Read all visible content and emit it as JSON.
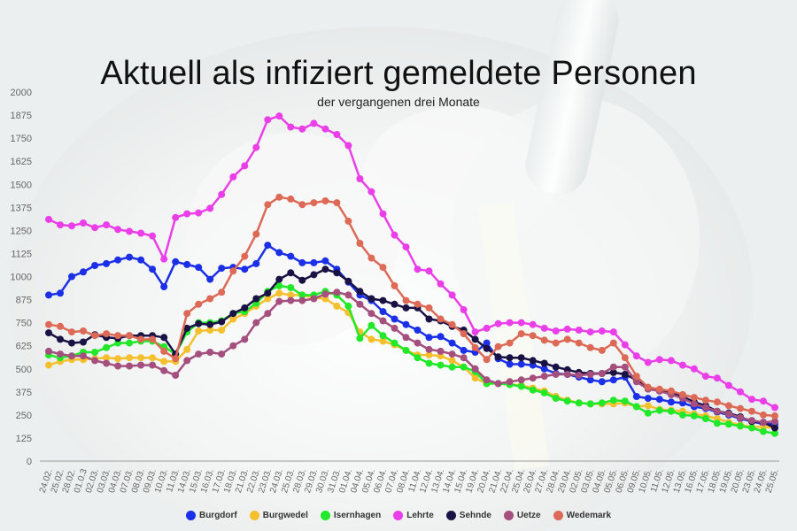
{
  "title": "Aktuell als infiziert gemeldete Personen",
  "subtitle": "der vergangenen drei Monate",
  "chart_data": {
    "type": "line",
    "title": "Aktuell als infiziert gemeldete Personen",
    "subtitle": "der vergangenen drei Monate",
    "xlabel": "",
    "ylabel": "",
    "ylim": [
      0,
      2000
    ],
    "yticks": [
      0,
      125,
      250,
      375,
      500,
      625,
      750,
      875,
      1000,
      1125,
      1250,
      1375,
      1500,
      1625,
      1750,
      1875,
      2000
    ],
    "grid": false,
    "legend_position": "bottom",
    "categories": [
      "24.02.",
      "25.02.",
      "28.02.",
      "01.0.3",
      "02.03.",
      "03.03.",
      "04.03.",
      "07.03.",
      "08.03.",
      "09.03.",
      "10.03.",
      "11.03.",
      "14.03.",
      "15.03.",
      "16.03.",
      "17.03.",
      "18.03.",
      "21.03.",
      "22.03.",
      "23.03.",
      "24.03.",
      "25.03.",
      "28.03.",
      "29.03.",
      "30.03.",
      "31.03.",
      "01.04.",
      "04.04.",
      "05.04.",
      "06.04.",
      "07.04.",
      "08.04.",
      "11.04.",
      "12.04.",
      "13.04.",
      "14.04.",
      "15.04.",
      "19.04.",
      "20.04.",
      "21.04.",
      "22.04.",
      "25.04.",
      "26.04.",
      "27.04.",
      "28.04.",
      "29.04.",
      "02.05.",
      "03.05.",
      "04.05.",
      "05.05.",
      "06.05.",
      "09.05.",
      "10.05.",
      "11.05.",
      "12.05.",
      "13.05.",
      "16.05.",
      "17.05.",
      "18.05.",
      "19.05.",
      "20.05.",
      "23.05.",
      "24.05.",
      "25.05."
    ],
    "series": [
      {
        "name": "Burgdorf",
        "color": "#1a2fe6",
        "values": [
          900,
          910,
          1000,
          1025,
          1060,
          1070,
          1090,
          1105,
          1090,
          1040,
          945,
          1080,
          1065,
          1050,
          985,
          1045,
          1050,
          1040,
          1070,
          1170,
          1130,
          1110,
          1075,
          1075,
          1085,
          1040,
          970,
          900,
          870,
          810,
          770,
          740,
          710,
          670,
          675,
          640,
          600,
          590,
          640,
          555,
          525,
          525,
          520,
          500,
          475,
          470,
          455,
          440,
          430,
          440,
          455,
          350,
          340,
          335,
          320,
          315,
          295,
          285,
          265,
          250,
          230,
          215,
          200,
          200
        ]
      },
      {
        "name": "Burgwedel",
        "color": "#f5c02d",
        "values": [
          520,
          540,
          550,
          550,
          555,
          560,
          555,
          560,
          560,
          560,
          540,
          540,
          605,
          705,
          710,
          710,
          770,
          800,
          840,
          880,
          910,
          900,
          900,
          885,
          880,
          840,
          805,
          700,
          660,
          650,
          630,
          600,
          575,
          575,
          570,
          545,
          510,
          450,
          420,
          420,
          415,
          410,
          395,
          380,
          350,
          330,
          315,
          310,
          310,
          310,
          315,
          295,
          300,
          280,
          275,
          270,
          255,
          245,
          230,
          210,
          195,
          185,
          185,
          180
        ]
      },
      {
        "name": "Isernhagen",
        "color": "#22e82a",
        "values": [
          575,
          560,
          570,
          590,
          590,
          615,
          640,
          640,
          650,
          650,
          620,
          580,
          700,
          750,
          750,
          760,
          800,
          810,
          855,
          920,
          950,
          940,
          900,
          900,
          920,
          900,
          840,
          665,
          735,
          680,
          640,
          600,
          560,
          530,
          520,
          510,
          510,
          485,
          420,
          420,
          415,
          405,
          385,
          370,
          340,
          325,
          315,
          310,
          315,
          330,
          325,
          295,
          260,
          275,
          270,
          250,
          245,
          230,
          205,
          200,
          190,
          180,
          160,
          150
        ]
      },
      {
        "name": "Lehrte",
        "color": "#e93ee8",
        "values": [
          1310,
          1280,
          1275,
          1290,
          1265,
          1280,
          1255,
          1245,
          1235,
          1220,
          1095,
          1320,
          1340,
          1345,
          1370,
          1445,
          1540,
          1600,
          1700,
          1850,
          1870,
          1810,
          1800,
          1830,
          1800,
          1770,
          1710,
          1530,
          1460,
          1340,
          1225,
          1160,
          1040,
          1030,
          960,
          900,
          820,
          700,
          720,
          745,
          750,
          750,
          740,
          720,
          705,
          715,
          710,
          700,
          705,
          700,
          630,
          570,
          535,
          550,
          545,
          520,
          500,
          460,
          450,
          410,
          375,
          335,
          325,
          290
        ]
      },
      {
        "name": "Sehnde",
        "color": "#1a1245",
        "values": [
          695,
          660,
          640,
          645,
          685,
          670,
          665,
          680,
          680,
          680,
          670,
          580,
          720,
          745,
          740,
          755,
          800,
          830,
          880,
          910,
          985,
          1020,
          980,
          1010,
          1040,
          1020,
          975,
          920,
          880,
          870,
          850,
          830,
          830,
          770,
          760,
          730,
          710,
          660,
          610,
          565,
          560,
          560,
          545,
          530,
          510,
          495,
          480,
          475,
          475,
          480,
          470,
          440,
          395,
          380,
          370,
          350,
          320,
          300,
          270,
          260,
          240,
          215,
          210,
          180
        ]
      },
      {
        "name": "Uetze",
        "color": "#a44f7d",
        "values": [
          595,
          580,
          570,
          570,
          545,
          530,
          515,
          515,
          520,
          520,
          490,
          465,
          545,
          580,
          590,
          580,
          625,
          660,
          750,
          800,
          865,
          870,
          870,
          880,
          905,
          915,
          900,
          850,
          800,
          760,
          720,
          670,
          640,
          605,
          595,
          580,
          560,
          500,
          440,
          420,
          430,
          440,
          450,
          460,
          470,
          470,
          465,
          470,
          475,
          510,
          510,
          430,
          390,
          380,
          360,
          340,
          310,
          290,
          270,
          255,
          235,
          220,
          210,
          215
        ]
      },
      {
        "name": "Wedemark",
        "color": "#dc6a57",
        "values": [
          740,
          730,
          700,
          705,
          680,
          690,
          680,
          680,
          660,
          660,
          595,
          555,
          800,
          850,
          880,
          915,
          1030,
          1110,
          1230,
          1390,
          1430,
          1420,
          1390,
          1400,
          1410,
          1400,
          1300,
          1180,
          1100,
          1050,
          950,
          870,
          850,
          830,
          770,
          740,
          690,
          615,
          550,
          620,
          640,
          690,
          680,
          655,
          640,
          660,
          640,
          615,
          600,
          640,
          560,
          460,
          400,
          390,
          380,
          360,
          345,
          330,
          320,
          300,
          285,
          270,
          250,
          245
        ]
      }
    ]
  }
}
